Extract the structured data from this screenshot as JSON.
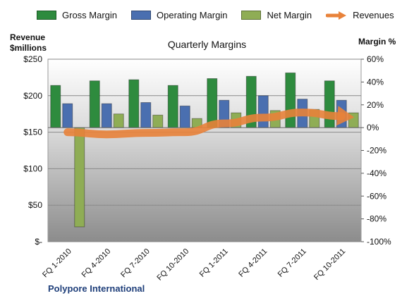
{
  "chart_data": {
    "type": "bar",
    "title": "Quarterly Margins",
    "left_axis_title_line1": "Revenue",
    "left_axis_title_line2": "$millions",
    "right_axis_title": "Margin %",
    "categories": [
      "FQ 1-2010",
      "FQ 4-2010",
      "FQ 7-2010",
      "FQ 10-2010",
      "FQ 1-2011",
      "FQ 4-2011",
      "FQ 7-2011",
      "FQ 10-2011"
    ],
    "series": [
      {
        "name": "Gross Margin",
        "kind": "bar",
        "axis": "right",
        "color": "#2e8b3e",
        "values": [
          37,
          41,
          42,
          37,
          43,
          45,
          48,
          41
        ]
      },
      {
        "name": "Operating Margin",
        "kind": "bar",
        "axis": "right",
        "color": "#4a6fb0",
        "values": [
          21,
          21,
          22,
          19,
          24,
          28,
          25,
          24
        ]
      },
      {
        "name": "Net Margin",
        "kind": "bar",
        "axis": "right",
        "color": "#8fad55",
        "values": [
          -87,
          12,
          11,
          8,
          13,
          15,
          16,
          13
        ]
      },
      {
        "name": "Revenues",
        "kind": "line",
        "axis": "left",
        "color": "#e8823a",
        "values": [
          150,
          147,
          149,
          150,
          162,
          170,
          177,
          172
        ]
      }
    ],
    "left_axis": {
      "min": 0,
      "max": 250,
      "ticks": [
        0,
        50,
        100,
        150,
        200,
        250
      ],
      "tick_labels": [
        "$-",
        "$50",
        "$100",
        "$150",
        "$200",
        "$250"
      ]
    },
    "right_axis": {
      "min": -100,
      "max": 60,
      "ticks": [
        -100,
        -80,
        -60,
        -40,
        -20,
        0,
        20,
        40,
        60
      ],
      "tick_labels": [
        "-100%",
        "-80%",
        "-60%",
        "-40%",
        "-20%",
        "0%",
        "20%",
        "40%",
        "60%"
      ]
    },
    "grid": true,
    "legend": "top"
  },
  "footer": {
    "company": "Polypore International"
  }
}
